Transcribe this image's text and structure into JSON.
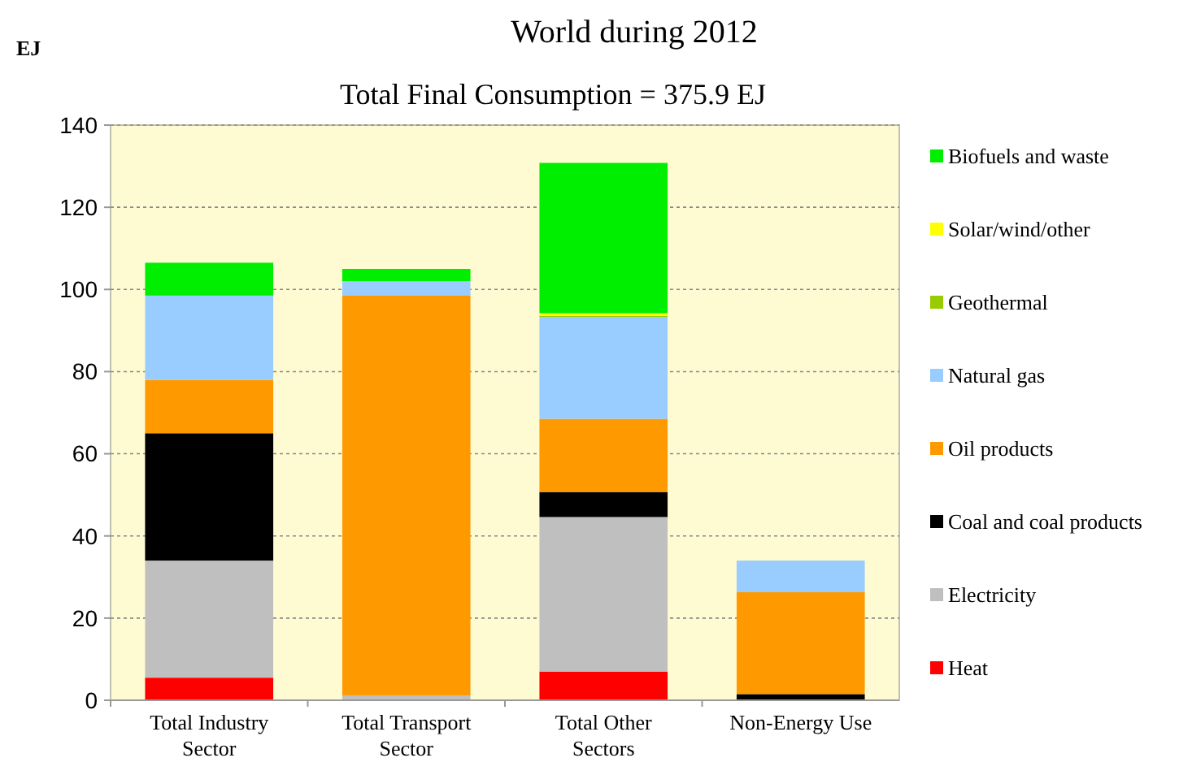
{
  "chart_data": {
    "type": "bar",
    "title": "World during 2012",
    "subtitle": "Total Final Consumption = 375.9 EJ",
    "ylabel": "EJ",
    "stacked": true,
    "legend": "right",
    "grid": "y",
    "ylim": [
      0,
      140
    ],
    "yticks": [
      0,
      20,
      40,
      60,
      80,
      100,
      120,
      140
    ],
    "categories": [
      "Total Industry Sector",
      "Total Transport Sector",
      "Total Other Sectors",
      "Non-Energy Use"
    ],
    "series": [
      {
        "name": "Heat",
        "color": "#ff0000",
        "values": [
          5.5,
          0,
          7,
          0
        ]
      },
      {
        "name": "Electricity",
        "color": "#bfbfbf",
        "values": [
          28.5,
          1.2,
          37.6,
          0
        ]
      },
      {
        "name": "Coal and coal products",
        "color": "#000000",
        "values": [
          31,
          0,
          6.1,
          1.5
        ]
      },
      {
        "name": "Oil products",
        "color": "#ff9900",
        "values": [
          13,
          97.4,
          17.8,
          24.8
        ]
      },
      {
        "name": "Natural gas",
        "color": "#99ccff",
        "values": [
          20.5,
          3.4,
          24.8,
          7.7
        ]
      },
      {
        "name": "Geothermal",
        "color": "#99cc00",
        "values": [
          0,
          0,
          0.3,
          0
        ]
      },
      {
        "name": "Solar/wind/other",
        "color": "#ffff00",
        "values": [
          0,
          0,
          0.6,
          0
        ]
      },
      {
        "name": "Biofuels and waste",
        "color": "#00ee00",
        "values": [
          8,
          3,
          36.6,
          0
        ]
      }
    ]
  }
}
